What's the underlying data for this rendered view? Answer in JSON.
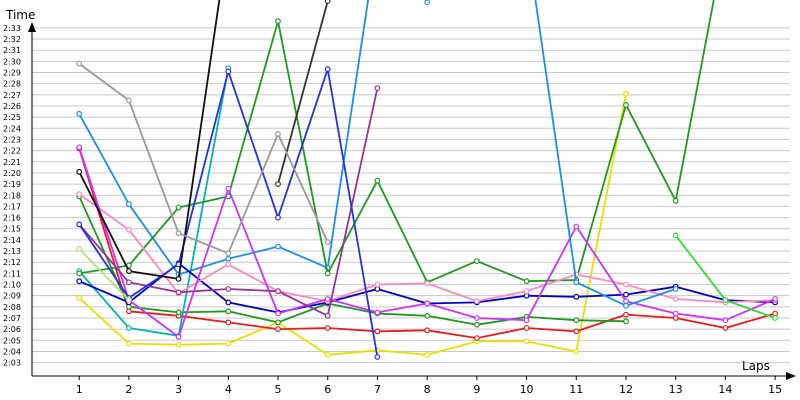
{
  "chart_data": {
    "type": "line",
    "ylabel": "Time",
    "xlabel": "Laps",
    "x": [
      1,
      2,
      3,
      4,
      5,
      6,
      7,
      8,
      9,
      10,
      11,
      12,
      13,
      14,
      15
    ],
    "xlim": [
      0.05,
      15.3
    ],
    "ylim": [
      121.8,
      155.5
    ],
    "y_ticks": [
      {
        "value": 123,
        "label": "2:03"
      },
      {
        "value": 124,
        "label": "2:04"
      },
      {
        "value": 125,
        "label": "2:05"
      },
      {
        "value": 126,
        "label": "2:06"
      },
      {
        "value": 127,
        "label": "2:07"
      },
      {
        "value": 128,
        "label": "2:08"
      },
      {
        "value": 129,
        "label": "2:09"
      },
      {
        "value": 130,
        "label": "2:10"
      },
      {
        "value": 131,
        "label": "2:11"
      },
      {
        "value": 132,
        "label": "2:12"
      },
      {
        "value": 133,
        "label": "2:13"
      },
      {
        "value": 134,
        "label": "2:14"
      },
      {
        "value": 135,
        "label": "2:15"
      },
      {
        "value": 136,
        "label": "2:16"
      },
      {
        "value": 137,
        "label": "2:17"
      },
      {
        "value": 138,
        "label": "2:18"
      },
      {
        "value": 139,
        "label": "2:19"
      },
      {
        "value": 140,
        "label": "2:20"
      },
      {
        "value": 141,
        "label": "2:21"
      },
      {
        "value": 142,
        "label": "2:22"
      },
      {
        "value": 143,
        "label": "2:23"
      },
      {
        "value": 144,
        "label": "2:24"
      },
      {
        "value": 145,
        "label": "2:25"
      },
      {
        "value": 146,
        "label": "2:26"
      },
      {
        "value": 147,
        "label": "2:27"
      },
      {
        "value": 148,
        "label": "2:28"
      },
      {
        "value": 149,
        "label": "2:29"
      },
      {
        "value": 150,
        "label": "2:30"
      },
      {
        "value": 151,
        "label": "2:31"
      },
      {
        "value": 152,
        "label": "2:32"
      },
      {
        "value": 153,
        "label": "2:33"
      }
    ],
    "x_tick_labels": [
      "1",
      "2",
      "3",
      "4",
      "5",
      "6",
      "7",
      "8",
      "9",
      "10",
      "11",
      "12",
      "13",
      "14",
      "15"
    ],
    "grid": true,
    "legend": "none",
    "series": [
      {
        "color": "#e8e000",
        "values": [
          128.8,
          124.7,
          124.6,
          124.7,
          126.6,
          123.7,
          124.1,
          123.7,
          124.9,
          124.9,
          124.0,
          147.1,
          null,
          null,
          null
        ]
      },
      {
        "color": "#e81c1c",
        "values": [
          142.2,
          127.6,
          127.2,
          126.6,
          126.0,
          126.1,
          125.8,
          125.9,
          125.2,
          126.1,
          125.8,
          127.3,
          127.0,
          126.1,
          127.4
        ]
      },
      {
        "color": "#1e9a1e",
        "values": [
          137.9,
          128.0,
          127.5,
          127.6,
          126.6,
          128.3,
          127.4,
          127.2,
          126.4,
          127.1,
          126.8,
          126.7,
          null,
          null,
          null
        ]
      },
      {
        "color": "#00b4b4",
        "values": [
          131.2,
          126.1,
          125.4,
          149.4,
          null,
          null,
          null,
          null,
          null,
          null,
          null,
          null,
          null,
          null,
          null
        ]
      },
      {
        "color": "#1a8fe6",
        "values": [
          145.3,
          137.2,
          130.9,
          132.3,
          133.4,
          131.5,
          161,
          null,
          null,
          null,
          null,
          null,
          null,
          null,
          null
        ]
      },
      {
        "color": "#0000c8",
        "values": [
          130.3,
          128.4,
          131.9,
          128.4,
          127.5,
          128.4,
          129.6,
          128.3,
          128.4,
          129.0,
          128.9,
          129.1,
          129.8,
          128.6,
          128.4
        ]
      },
      {
        "color": "#1e9a1e",
        "values": [
          131.0,
          131.7,
          136.9,
          137.9,
          153.6,
          131.0,
          139.3,
          130.2,
          132.1,
          130.3,
          130.4,
          146.1,
          137.5,
          161,
          null
        ]
      },
      {
        "color": "#ff88bb",
        "values": [
          138.1,
          134.9,
          129.2,
          131.8,
          129.4,
          128.5,
          130.0,
          130.1,
          128.5,
          129.4,
          130.9,
          130.0,
          128.7,
          128.4,
          128.6
        ]
      },
      {
        "color": "#cc33ff",
        "values": [
          142.3,
          128.6,
          125.3,
          138.6,
          127.4,
          128.7,
          127.5,
          128.3,
          127.0,
          126.8,
          135.2,
          128.5,
          127.4,
          126.8,
          128.7
        ]
      },
      {
        "color": "#993399",
        "values": [
          135.4,
          130.2,
          129.3,
          129.6,
          129.4,
          127.2,
          147.6,
          null,
          null,
          null,
          null,
          null,
          null,
          null,
          null
        ]
      },
      {
        "color": "#2233dd",
        "values": [
          135.4,
          128.8,
          131.8,
          149.1,
          136.0,
          149.3,
          123.5,
          null,
          null,
          null,
          null,
          null,
          null,
          null,
          null
        ]
      },
      {
        "color": "#111111",
        "values": [
          140.1,
          131.2,
          130.5,
          161,
          null,
          null,
          null,
          null,
          null,
          null,
          null,
          null,
          null,
          null,
          null
        ]
      },
      {
        "color": "#333333",
        "values": [
          null,
          null,
          null,
          null,
          139.0,
          155.4,
          null,
          null,
          null,
          null,
          null,
          null,
          null,
          null,
          null
        ]
      },
      {
        "color": "#999999",
        "values": [
          149.8,
          146.5,
          134.6,
          132.8,
          143.5,
          133.8,
          null,
          null,
          null,
          null,
          null,
          null,
          null,
          null,
          null
        ]
      },
      {
        "color": "#1a8fe6",
        "values": [
          null,
          null,
          null,
          null,
          null,
          null,
          null,
          155.3,
          null,
          null,
          null,
          null,
          null,
          null,
          null
        ]
      },
      {
        "color": "#1a8fe6",
        "values": [
          null,
          null,
          null,
          null,
          null,
          null,
          null,
          null,
          null,
          161,
          130.2,
          128.1,
          129.6,
          null,
          null
        ]
      },
      {
        "color": "#33dd33",
        "values": [
          null,
          null,
          null,
          null,
          null,
          null,
          null,
          null,
          null,
          null,
          null,
          null,
          134.4,
          128.6,
          127.0
        ]
      },
      {
        "color": "#bbdd77",
        "values": [
          133.2,
          128.6,
          null,
          null,
          null,
          null,
          null,
          null,
          null,
          null,
          null,
          null,
          null,
          null,
          null
        ]
      }
    ]
  }
}
